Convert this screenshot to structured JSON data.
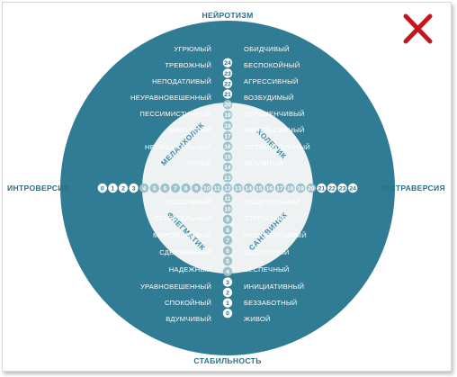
{
  "colors": {
    "outer": "#2f7c94",
    "inner_disc": "#eef2f3",
    "scale_outer_dot": "#ffffff",
    "scale_inner_dot": "#9fc2cd",
    "close_mark": "#c4161c"
  },
  "axes": {
    "top": "НЕЙРОТИЗМ",
    "bottom": "СТАБИЛЬНОСТЬ",
    "left": "ИНТРОВЕРСИЯ",
    "right": "ЭКСТРАВЕРСИЯ"
  },
  "quadrants": {
    "top_left": "МЕЛАНХОЛИК",
    "top_right": "ХОЛЕРИК",
    "bottom_left": "ФЛЕГМАТИК",
    "bottom_right": "САНГВИНИК"
  },
  "traits": {
    "top_left": [
      "УГРЮМЫЙ",
      "ТРЕВОЖНЫЙ",
      "НЕПОДАТЛИВЫЙ",
      "НЕУРАВНОВЕШЕННЫЙ",
      "ПЕССИМИСТИЧНЫЙ",
      "ЗАМКНУТЫЙ",
      "НЕОБЩИТЕЛЬНЫЙ",
      "ТИХИЙ"
    ],
    "top_right": [
      "ОБИДЧИВЫЙ",
      "БЕСПОКОЙНЫЙ",
      "АГРЕССИВНЫЙ",
      "ВОЗБУДИМЫЙ",
      "ПЕРЕМЕНЧИВЫЙ",
      "ИМПУЛЬСИВНЫЙ",
      "ОПТИМИСТИЧНЫЙ",
      "АКТИВНЫЙ"
    ],
    "bottom_left": [
      "ПАССИВНЫЙ",
      "СТАРАТЕЛЬНЫЙ",
      "МИРОЛЮБИВЫЙ",
      "СДЕРЖАННЫЙ",
      "НАДЕЖНЫЙ",
      "УРАВНОВЕШЕННЫЙ",
      "СПОКОЙНЫЙ",
      "ВДУМЧИВЫЙ"
    ],
    "bottom_right": [
      "ОБЩИТЕЛЬНЫЙ",
      "ОТКРЫТЫЙ",
      "РАЗГОВОРЧИВЫЙ",
      "ДОСТУПНЫЙ",
      "БЕСПЕЧНЫЙ",
      "ИНИЦИАТИВНЫЙ",
      "БЕЗЗАБОТНЫЙ",
      "ЖИВОЙ"
    ]
  },
  "scale": {
    "vertical_top_to_bottom": [
      "24",
      "23",
      "22",
      "21",
      "20",
      "19",
      "18",
      "17",
      "16",
      "15",
      "14",
      "13",
      "12",
      "11",
      "10",
      "9",
      "8",
      "7",
      "6",
      "5",
      "4",
      "3",
      "2",
      "1",
      "0"
    ],
    "horizontal_left_to_right": [
      "0",
      "1",
      "2",
      "3",
      "4",
      "5",
      "6",
      "7",
      "8",
      "9",
      "10",
      "11",
      "12",
      "13",
      "14",
      "15",
      "16",
      "17",
      "18",
      "19",
      "20",
      "21",
      "22",
      "23",
      "24"
    ]
  },
  "close_icon": "close-x-icon"
}
